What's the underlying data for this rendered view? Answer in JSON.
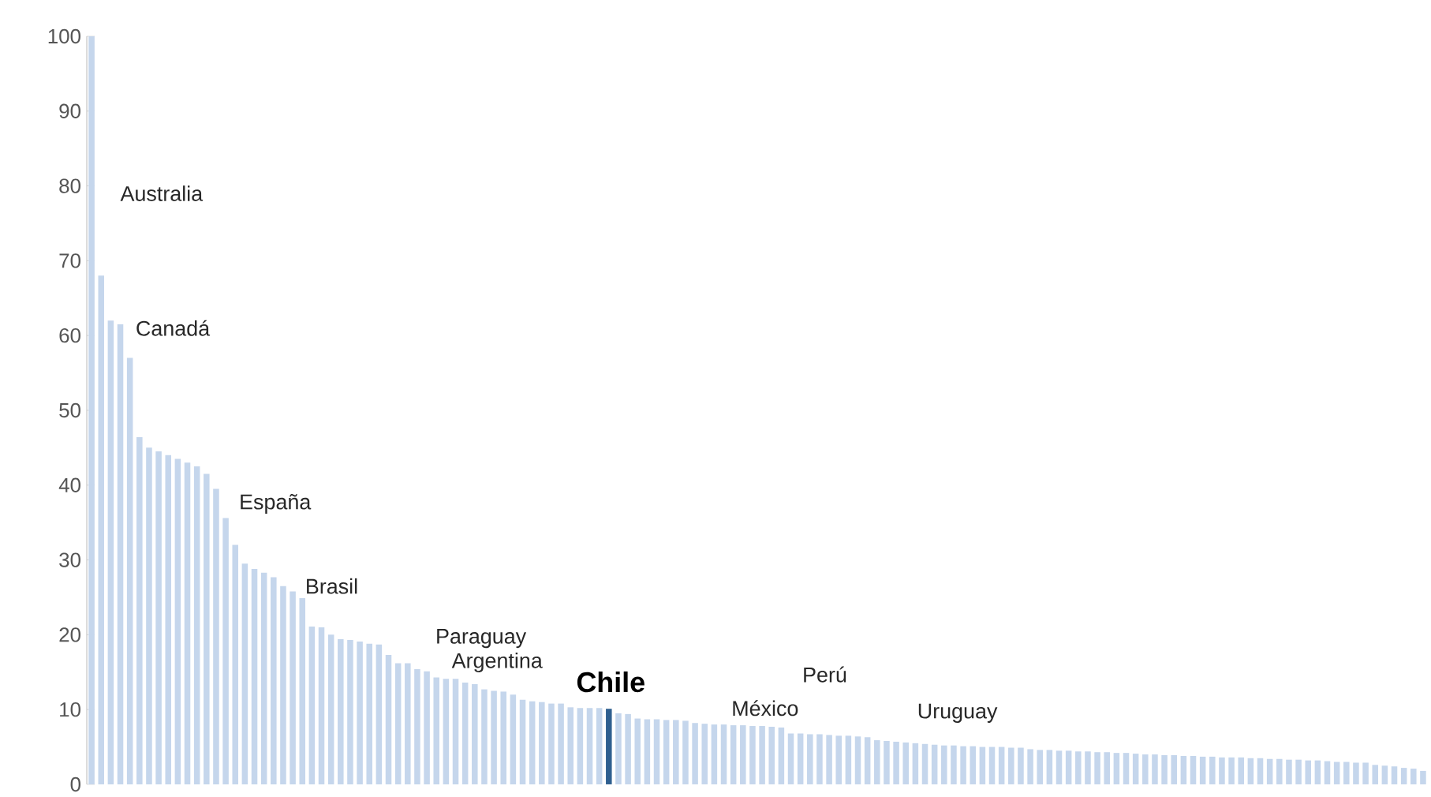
{
  "chart_data": {
    "type": "bar",
    "categories": [
      null,
      null,
      null,
      null,
      null,
      null,
      null,
      null,
      null,
      null,
      null,
      null,
      null,
      null,
      null,
      null,
      null,
      null,
      null,
      null,
      null,
      null,
      null,
      null,
      null,
      null,
      null,
      null,
      null,
      null,
      null,
      null,
      null,
      null,
      null,
      null,
      null,
      null,
      null,
      null,
      null,
      null,
      null,
      null,
      null,
      null,
      null,
      null,
      null,
      null,
      null,
      null,
      null,
      null,
      null,
      null,
      null,
      null,
      null,
      null,
      null,
      null,
      null,
      null,
      null,
      null,
      null,
      null,
      null,
      null,
      null,
      null,
      null,
      null,
      null,
      null,
      null,
      null,
      null,
      null,
      null,
      null,
      null,
      null,
      null,
      null,
      null,
      null,
      null,
      null,
      null,
      null,
      null,
      null,
      null,
      null,
      null,
      null,
      null,
      null,
      null,
      null,
      null,
      null,
      null,
      null,
      null,
      null,
      null,
      null,
      null,
      null,
      null,
      null,
      null,
      null,
      null,
      null,
      null,
      null,
      null,
      null,
      null,
      null,
      null,
      null,
      null,
      null,
      null,
      null,
      null,
      null,
      null,
      null,
      null,
      null,
      null,
      null,
      null,
      null
    ],
    "annotations": [
      "Australia",
      "Canadá",
      "España",
      "Brasil",
      "Paraguay",
      "Argentina",
      "Chile",
      "México",
      "Perú",
      "Uruguay"
    ],
    "values": [
      100,
      68,
      62,
      61.5,
      57,
      46.4,
      45,
      44.5,
      44,
      43.5,
      43,
      42.5,
      41.5,
      39.5,
      35.6,
      32,
      29.5,
      28.8,
      28.3,
      27.7,
      26.5,
      25.8,
      24.9,
      21.1,
      21,
      20,
      19.4,
      19.3,
      19.1,
      18.8,
      18.7,
      17.3,
      16.2,
      16.2,
      15.4,
      15.1,
      14.3,
      14.1,
      14.1,
      13.6,
      13.4,
      12.7,
      12.5,
      12.4,
      12,
      11.3,
      11.1,
      11,
      10.8,
      10.8,
      10.3,
      10.2,
      10.2,
      10.2,
      10.1,
      9.5,
      9.4,
      8.8,
      8.7,
      8.7,
      8.6,
      8.6,
      8.5,
      8.2,
      8.1,
      8,
      8,
      7.9,
      7.9,
      7.8,
      7.8,
      7.7,
      7.6,
      6.8,
      6.8,
      6.7,
      6.7,
      6.6,
      6.5,
      6.5,
      6.4,
      6.3,
      5.9,
      5.8,
      5.7,
      5.6,
      5.5,
      5.4,
      5.3,
      5.2,
      5.2,
      5.1,
      5.1,
      5,
      5,
      5,
      4.9,
      4.9,
      4.7,
      4.6,
      4.6,
      4.5,
      4.5,
      4.4,
      4.4,
      4.3,
      4.3,
      4.2,
      4.2,
      4.1,
      4,
      4,
      3.9,
      3.9,
      3.8,
      3.8,
      3.7,
      3.7,
      3.6,
      3.6,
      3.6,
      3.5,
      3.5,
      3.4,
      3.4,
      3.3,
      3.3,
      3.2,
      3.2,
      3.1,
      3,
      3,
      2.9,
      2.9,
      2.6,
      2.5,
      2.4,
      2.2,
      2.1,
      1.8
    ],
    "colors": [
      "#c5d6ec",
      "#c5d6ec",
      "#c5d6ec",
      "#c5d6ec",
      "#c5d6ec",
      "#c5d6ec",
      "#c5d6ec",
      "#c5d6ec",
      "#c5d6ec",
      "#c5d6ec",
      "#c5d6ec",
      "#c5d6ec",
      "#c5d6ec",
      "#c5d6ec",
      "#c5d6ec",
      "#c5d6ec",
      "#c5d6ec",
      "#c5d6ec",
      "#c5d6ec",
      "#c5d6ec",
      "#c5d6ec",
      "#c5d6ec",
      "#c5d6ec",
      "#c5d6ec",
      "#c5d6ec",
      "#c5d6ec",
      "#c5d6ec",
      "#c5d6ec",
      "#c5d6ec",
      "#c5d6ec",
      "#c5d6ec",
      "#c5d6ec",
      "#c5d6ec",
      "#c5d6ec",
      "#c5d6ec",
      "#c5d6ec",
      "#c5d6ec",
      "#c5d6ec",
      "#c5d6ec",
      "#c5d6ec",
      "#c5d6ec",
      "#c5d6ec",
      "#c5d6ec",
      "#c5d6ec",
      "#c5d6ec",
      "#c5d6ec",
      "#c5d6ec",
      "#c5d6ec",
      "#c5d6ec",
      "#c5d6ec",
      "#c5d6ec",
      "#c5d6ec",
      "#c5d6ec",
      "#c5d6ec",
      "#2f5f8f",
      "#c5d6ec",
      "#c5d6ec",
      "#c5d6ec",
      "#c5d6ec",
      "#c5d6ec",
      "#c5d6ec",
      "#c5d6ec",
      "#c5d6ec",
      "#c5d6ec",
      "#c5d6ec",
      "#c5d6ec",
      "#c5d6ec",
      "#c5d6ec",
      "#c5d6ec",
      "#c5d6ec",
      "#c5d6ec",
      "#c5d6ec",
      "#c5d6ec",
      "#c5d6ec",
      "#c5d6ec",
      "#c5d6ec",
      "#c5d6ec",
      "#c5d6ec",
      "#c5d6ec",
      "#c5d6ec",
      "#c5d6ec",
      "#c5d6ec",
      "#c5d6ec",
      "#c5d6ec",
      "#c5d6ec",
      "#c5d6ec",
      "#c5d6ec",
      "#c5d6ec",
      "#c5d6ec",
      "#c5d6ec",
      "#c5d6ec",
      "#c5d6ec",
      "#c5d6ec",
      "#c5d6ec",
      "#c5d6ec",
      "#c5d6ec",
      "#c5d6ec",
      "#c5d6ec",
      "#c5d6ec",
      "#c5d6ec",
      "#c5d6ec",
      "#c5d6ec",
      "#c5d6ec",
      "#c5d6ec",
      "#c5d6ec",
      "#c5d6ec",
      "#c5d6ec",
      "#c5d6ec",
      "#c5d6ec",
      "#c5d6ec",
      "#c5d6ec",
      "#c5d6ec",
      "#c5d6ec",
      "#c5d6ec",
      "#c5d6ec",
      "#c5d6ec",
      "#c5d6ec",
      "#c5d6ec",
      "#c5d6ec",
      "#c5d6ec",
      "#c5d6ec",
      "#c5d6ec",
      "#c5d6ec",
      "#c5d6ec",
      "#c5d6ec",
      "#c5d6ec",
      "#c5d6ec",
      "#c5d6ec",
      "#c5d6ec",
      "#c5d6ec",
      "#c5d6ec",
      "#c5d6ec",
      "#c5d6ec",
      "#c5d6ec",
      "#c5d6ec",
      "#c5d6ec",
      "#c5d6ec",
      "#c5d6ec",
      "#c5d6ec",
      "#c5d6ec"
    ],
    "ylim": [
      0,
      100
    ],
    "yticks": [
      0,
      10,
      20,
      30,
      40,
      50,
      60,
      70,
      80,
      90,
      100
    ],
    "grid": false
  }
}
